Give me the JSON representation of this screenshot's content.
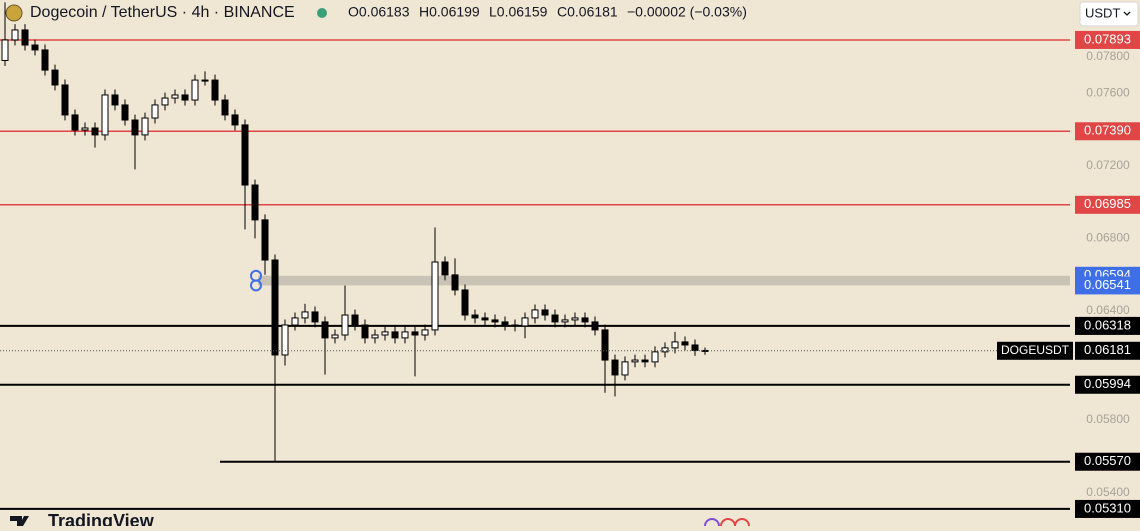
{
  "chart_data": {
    "type": "candlestick",
    "title": "Dogecoin / TetherUS · 4h · BINANCE",
    "ohlc_texts": [
      "O0.06183",
      "H0.06199",
      "L0.06159",
      "C0.06181",
      "−0.00002 (−0.03%)"
    ],
    "currency": "USDT",
    "brand": "TradingView",
    "ylim": [
      0.05216,
      0.08113
    ],
    "yticks": [
      {
        "value": 0.054,
        "label": "0.05400"
      },
      {
        "value": 0.058,
        "label": "0.05800"
      },
      {
        "value": 0.064,
        "label": "0.06400"
      },
      {
        "value": 0.068,
        "label": "0.06800"
      },
      {
        "value": 0.072,
        "label": "0.07200"
      },
      {
        "value": 0.076,
        "label": "0.07600"
      },
      {
        "value": 0.078,
        "label": "0.07800"
      }
    ],
    "open": [
      0.0778,
      0.07893,
      0.07948,
      0.07865,
      0.07838,
      0.07727,
      0.07645,
      0.0748,
      0.07397,
      0.07408,
      0.0737,
      0.0759,
      0.07535,
      0.07452,
      0.0737,
      0.07463,
      0.07535,
      0.07573,
      0.0759,
      0.07562,
      0.07672,
      0.07672,
      0.07562,
      0.0748,
      0.07425,
      0.07094,
      0.06902,
      0.06681,
      0.06158,
      0.06323,
      0.06362,
      0.06395,
      0.0634,
      0.06252,
      0.06268,
      0.06378,
      0.06323,
      0.06252,
      0.06268,
      0.06285,
      0.06252,
      0.06285,
      0.06268,
      0.06296,
      0.0667,
      0.06599,
      0.06516,
      0.06378,
      0.06362,
      0.06351,
      0.0634,
      0.06323,
      0.06318,
      0.06362,
      0.06406,
      0.06378,
      0.0634,
      0.06351,
      0.06362,
      0.0634,
      0.06296,
      0.0613,
      0.06048,
      0.0612,
      0.0613,
      0.0612,
      0.06175,
      0.06197,
      0.0623,
      0.06213,
      0.06183
    ],
    "high": [
      0.081,
      0.0798,
      0.0798,
      0.07895,
      0.07868,
      0.07757,
      0.07675,
      0.0751,
      0.07438,
      0.07438,
      0.0762,
      0.0762,
      0.07565,
      0.07482,
      0.07493,
      0.07565,
      0.07603,
      0.0762,
      0.0762,
      0.07702,
      0.0772,
      0.07702,
      0.07592,
      0.0751,
      0.07455,
      0.07124,
      0.06932,
      0.06711,
      0.06353,
      0.06392,
      0.0644,
      0.06425,
      0.0637,
      0.06298,
      0.0654,
      0.06408,
      0.06353,
      0.06298,
      0.06315,
      0.06315,
      0.06315,
      0.06315,
      0.06326,
      0.0686,
      0.067,
      0.0669,
      0.06546,
      0.06408,
      0.06392,
      0.06381,
      0.0637,
      0.06353,
      0.06392,
      0.06436,
      0.06436,
      0.06408,
      0.06381,
      0.06392,
      0.06392,
      0.0637,
      0.06326,
      0.0616,
      0.0615,
      0.0616,
      0.0616,
      0.06205,
      0.06227,
      0.06285,
      0.0626,
      0.06243,
      0.06199
    ],
    "low": [
      0.0775,
      0.07863,
      0.07835,
      0.07808,
      0.07697,
      0.07615,
      0.0745,
      0.07367,
      0.07367,
      0.073,
      0.0734,
      0.07505,
      0.07422,
      0.0718,
      0.0734,
      0.07433,
      0.07505,
      0.07543,
      0.07532,
      0.07532,
      0.07642,
      0.07532,
      0.0745,
      0.07395,
      0.0685,
      0.068,
      0.066,
      0.0557,
      0.061,
      0.06293,
      0.06332,
      0.0631,
      0.0605,
      0.06222,
      0.06238,
      0.06293,
      0.06222,
      0.06222,
      0.06238,
      0.06222,
      0.06222,
      0.0604,
      0.06238,
      0.06266,
      0.06569,
      0.06486,
      0.06348,
      0.06332,
      0.06321,
      0.0631,
      0.06293,
      0.06288,
      0.0625,
      0.06332,
      0.06348,
      0.0631,
      0.0631,
      0.06321,
      0.0631,
      0.06266,
      0.0595,
      0.0593,
      0.06018,
      0.0609,
      0.0609,
      0.0609,
      0.06145,
      0.06167,
      0.06183,
      0.06153,
      0.06159
    ],
    "close": [
      0.07893,
      0.07948,
      0.07865,
      0.07838,
      0.07727,
      0.07645,
      0.0748,
      0.07397,
      0.07408,
      0.0737,
      0.0759,
      0.07535,
      0.07452,
      0.0737,
      0.07463,
      0.07535,
      0.07573,
      0.0759,
      0.07562,
      0.07672,
      0.07672,
      0.07562,
      0.0748,
      0.07425,
      0.07094,
      0.06902,
      0.06681,
      0.06158,
      0.06323,
      0.06362,
      0.06395,
      0.0634,
      0.06252,
      0.06268,
      0.06378,
      0.06323,
      0.06252,
      0.06268,
      0.06285,
      0.06252,
      0.06285,
      0.06268,
      0.06296,
      0.0667,
      0.06599,
      0.06516,
      0.06378,
      0.06362,
      0.06351,
      0.0634,
      0.06323,
      0.06318,
      0.06362,
      0.06406,
      0.06378,
      0.0634,
      0.06351,
      0.06362,
      0.0634,
      0.06296,
      0.0613,
      0.06048,
      0.0612,
      0.0613,
      0.0612,
      0.06175,
      0.06197,
      0.0623,
      0.06213,
      0.06183,
      0.06181
    ],
    "levels": [
      {
        "value": 0.07893,
        "label": "0.07893",
        "color": "#e04646"
      },
      {
        "value": 0.0739,
        "label": "0.07390",
        "color": "#e04646"
      },
      {
        "value": 0.06985,
        "label": "0.06985",
        "color": "#e04646"
      },
      {
        "value": 0.06318,
        "label": "0.06318",
        "color": "#000000"
      },
      {
        "value": 0.05994,
        "label": "0.05994",
        "color": "#000000"
      },
      {
        "value": 0.0557,
        "label": "0.05570",
        "color": "#000000"
      },
      {
        "value": 0.0531,
        "label": "0.05310",
        "color": "#000000"
      }
    ],
    "zone": [
      {
        "value": 0.06594,
        "label": "0.06594"
      },
      {
        "value": 0.06541,
        "label": "0.06541"
      }
    ],
    "zone_color": "#3f6fe6",
    "current": {
      "symbol": "DOGEUSDT",
      "value": 0.06181
    }
  }
}
